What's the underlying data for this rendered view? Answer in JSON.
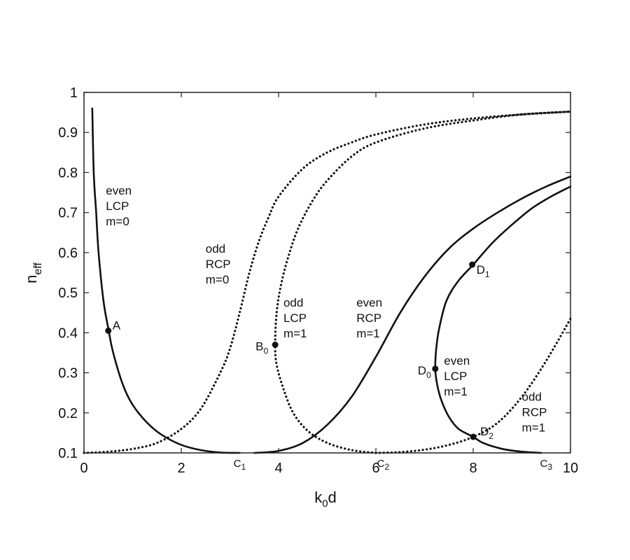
{
  "chart_data": {
    "type": "line",
    "xlabel": "k",
    "xlabel_sub": "0",
    "xlabel_rest": "d",
    "ylabel": "n",
    "ylabel_sub": "eff",
    "xlim": [
      0,
      10
    ],
    "ylim": [
      0.1,
      1
    ],
    "grid": false,
    "x_ticks": [
      "0",
      "2",
      "4",
      "6",
      "8",
      "10"
    ],
    "y_ticks": [
      "0.1",
      "0.2",
      "0.3",
      "0.4",
      "0.5",
      "0.6",
      "0.7",
      "0.8",
      "0.9",
      "1"
    ],
    "x_tick_values": [
      0,
      2,
      4,
      6,
      8,
      10
    ],
    "y_tick_values": [
      0.1,
      0.2,
      0.3,
      0.4,
      0.5,
      0.6,
      0.7,
      0.8,
      0.9,
      1.0
    ],
    "series": [
      {
        "style": "solid",
        "x": [
          0.17,
          0.2,
          0.25,
          0.3,
          0.4,
          0.5,
          0.6,
          0.8,
          1.0,
          1.3,
          1.6,
          2.0,
          2.4,
          2.8,
          3.2
        ],
        "y": [
          0.96,
          0.8,
          0.7,
          0.6,
          0.48,
          0.41,
          0.35,
          0.27,
          0.22,
          0.175,
          0.145,
          0.12,
          0.107,
          0.101,
          0.1
        ]
      },
      {
        "style": "dotted",
        "x": [
          0.0,
          0.5,
          1.0,
          1.5,
          2.0,
          2.4,
          2.8,
          3.0,
          3.2,
          3.4,
          3.6,
          3.8,
          4.0,
          4.5,
          5.0,
          5.5,
          6.0,
          7.0,
          8.0,
          9.0,
          10.0
        ],
        "y": [
          0.1,
          0.103,
          0.11,
          0.125,
          0.16,
          0.21,
          0.3,
          0.36,
          0.45,
          0.55,
          0.63,
          0.69,
          0.74,
          0.81,
          0.85,
          0.875,
          0.895,
          0.92,
          0.935,
          0.945,
          0.952
        ]
      },
      {
        "style": "dotted",
        "x": [
          6.0,
          5.5,
          5.0,
          4.6,
          4.3,
          4.1,
          3.96,
          3.93,
          3.96,
          4.05,
          4.2,
          4.4,
          4.7,
          5.0,
          5.5,
          6.0,
          7.0,
          8.0,
          9.0,
          10.0
        ],
        "y": [
          0.1,
          0.107,
          0.125,
          0.155,
          0.2,
          0.26,
          0.32,
          0.37,
          0.45,
          0.52,
          0.59,
          0.66,
          0.73,
          0.78,
          0.84,
          0.875,
          0.91,
          0.93,
          0.945,
          0.952
        ]
      },
      {
        "style": "solid",
        "x": [
          3.5,
          4.0,
          4.5,
          5.0,
          5.5,
          6.0,
          6.5,
          7.0,
          7.5,
          8.0,
          8.5,
          9.0,
          9.5,
          10.0
        ],
        "y": [
          0.1,
          0.105,
          0.125,
          0.17,
          0.24,
          0.34,
          0.45,
          0.54,
          0.61,
          0.66,
          0.7,
          0.735,
          0.765,
          0.79
        ]
      },
      {
        "style": "solid",
        "x": [
          9.4,
          9.0,
          8.6,
          8.2,
          8.0,
          7.7,
          7.5,
          7.35,
          7.26,
          7.22,
          7.24,
          7.3,
          7.45,
          7.7,
          8.0,
          8.4,
          8.8,
          9.2,
          9.6,
          10.0
        ],
        "y": [
          0.1,
          0.103,
          0.11,
          0.125,
          0.14,
          0.16,
          0.19,
          0.23,
          0.27,
          0.31,
          0.36,
          0.41,
          0.48,
          0.53,
          0.57,
          0.625,
          0.67,
          0.71,
          0.74,
          0.765
        ]
      },
      {
        "style": "dotted",
        "x": [
          6.0,
          6.5,
          7.0,
          7.5,
          8.0,
          8.5,
          9.0,
          9.5,
          10.0
        ],
        "y": [
          0.1,
          0.102,
          0.108,
          0.12,
          0.14,
          0.175,
          0.24,
          0.33,
          0.435
        ]
      }
    ],
    "points": [
      {
        "name": "A",
        "sub": "",
        "x": 0.5,
        "y": 0.405
      },
      {
        "name": "B",
        "sub": "0",
        "x": 3.93,
        "y": 0.37
      },
      {
        "name": "D",
        "sub": "1",
        "x": 7.98,
        "y": 0.57
      },
      {
        "name": "D",
        "sub": "0",
        "x": 7.22,
        "y": 0.31
      },
      {
        "name": "D",
        "sub": "2",
        "x": 8.0,
        "y": 0.14
      }
    ],
    "axis_markers": [
      {
        "name": "C",
        "sub": "1",
        "x": 3.2
      },
      {
        "name": "C",
        "sub": "2",
        "x": 6.15
      },
      {
        "name": "C",
        "sub": "3",
        "x": 9.5
      }
    ],
    "annotations": [
      {
        "lines": [
          "even",
          "LCP",
          "m=0"
        ],
        "x": 0.45,
        "y": 0.745
      },
      {
        "lines": [
          "odd",
          "RCP",
          "m=0"
        ],
        "x": 2.5,
        "y": 0.6
      },
      {
        "lines": [
          "odd",
          "LCP",
          "m=1"
        ],
        "x": 4.1,
        "y": 0.465
      },
      {
        "lines": [
          "even",
          "RCP",
          "m=1"
        ],
        "x": 5.6,
        "y": 0.465
      },
      {
        "lines": [
          "even",
          "LCP",
          "m=1"
        ],
        "x": 7.4,
        "y": 0.32
      },
      {
        "lines": [
          "odd",
          "RCP",
          "m=1"
        ],
        "x": 9.0,
        "y": 0.23
      }
    ]
  }
}
